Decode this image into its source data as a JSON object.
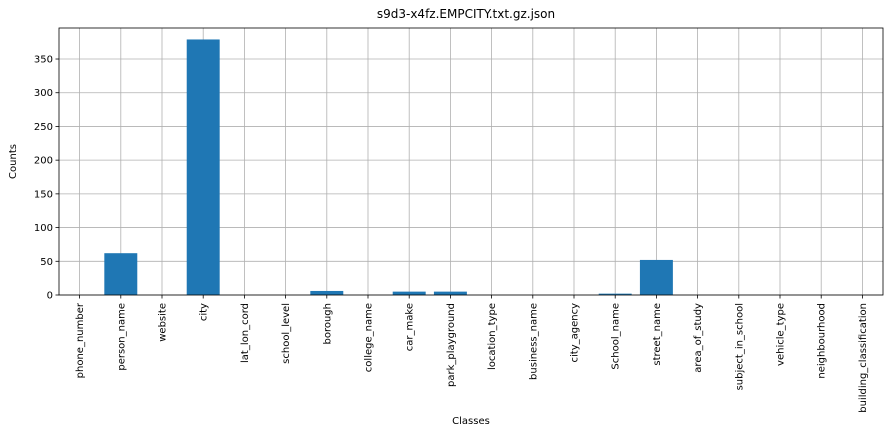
{
  "chart_data": {
    "type": "bar",
    "title": "s9d3-x4fz.EMPCITY.txt.gz.json",
    "xlabel": "Classes",
    "ylabel": "Counts",
    "ylim": [
      0,
      396
    ],
    "yticks": [
      0,
      50,
      100,
      150,
      200,
      250,
      300,
      350
    ],
    "grid": true,
    "bar_color": "#1f77b4",
    "categories": [
      "phone_number",
      "person_name",
      "website",
      "city",
      "lat_lon_cord",
      "school_level",
      "borough",
      "college_name",
      "car_make",
      "park_playground",
      "location_type",
      "business_name",
      "city_agency",
      "School_name",
      "street_name",
      "area_of_study",
      "subject_in_school",
      "vehicle_type",
      "neighbourhood",
      "building_classification"
    ],
    "values": [
      0,
      62,
      0,
      379,
      0,
      0,
      6,
      0,
      5,
      5,
      0,
      0,
      0,
      2,
      52,
      0,
      0,
      0,
      0,
      0
    ]
  }
}
